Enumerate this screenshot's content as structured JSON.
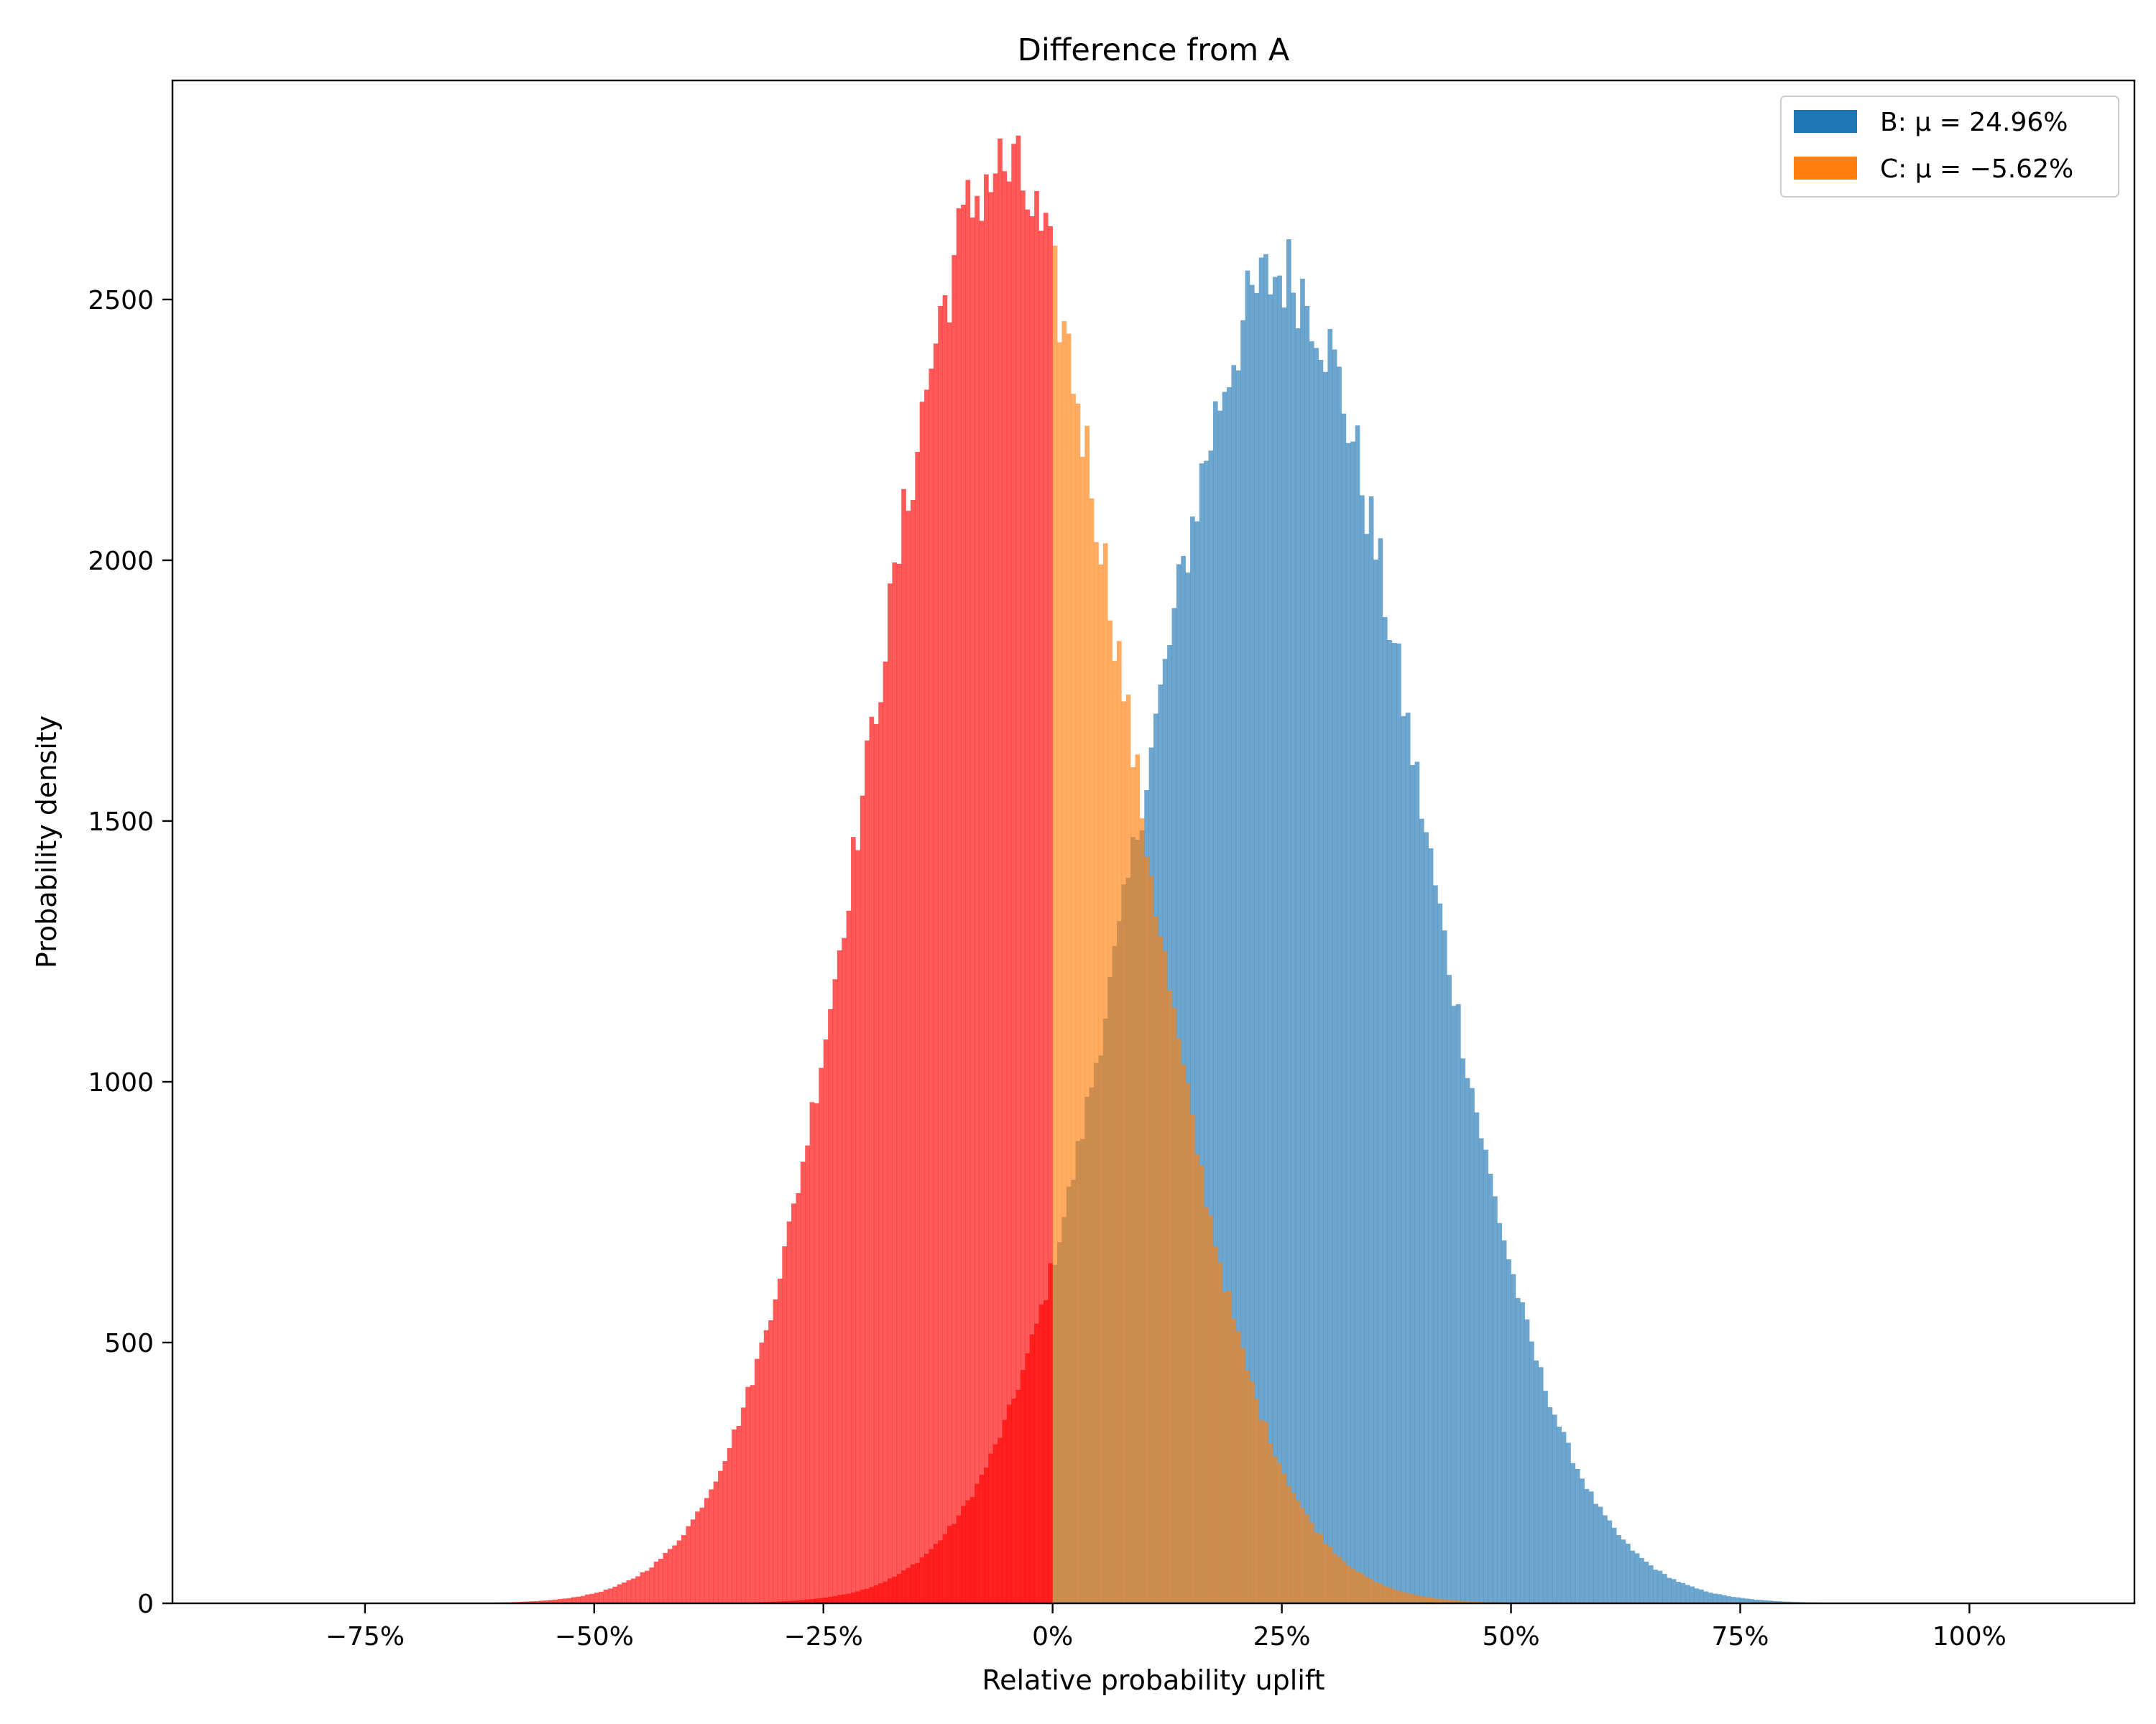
{
  "chart_data": {
    "type": "bar",
    "chart_kind": "overlapping histograms",
    "title": "Difference from A",
    "xlabel": "Relative probability uplift",
    "ylabel": "Probability density",
    "xlim": [
      -0.96,
      1.18
    ],
    "ylim": [
      0,
      2920
    ],
    "x_tick_values": [
      -0.75,
      -0.5,
      -0.25,
      0,
      0.25,
      0.5,
      0.75,
      1.0
    ],
    "x_tick_labels": [
      "−75%",
      "−50%",
      "−25%",
      "0%",
      "25%",
      "50%",
      "75%",
      "100%"
    ],
    "y_tick_values": [
      0,
      500,
      1000,
      1500,
      2000,
      2500
    ],
    "y_tick_labels": [
      "0",
      "500",
      "1000",
      "1500",
      "2000",
      "2500"
    ],
    "grid": false,
    "legend_position": "upper right",
    "negative_region_color": "#ff0000",
    "series": [
      {
        "name": "B",
        "legend_label": "B: μ = 24.96%",
        "color": "#1f77b4",
        "distribution": "approximately normal",
        "mean": 0.2496,
        "std": 0.151,
        "peak_density": 2550,
        "x_range": [
          -0.52,
          0.98
        ]
      },
      {
        "name": "C",
        "legend_label": "C: μ = −5.62%",
        "color": "#ff7f0e",
        "distribution": "approximately normal",
        "mean": -0.0562,
        "std": 0.141,
        "peak_density": 2750,
        "x_range": [
          -0.7,
          0.55
        ]
      }
    ]
  }
}
